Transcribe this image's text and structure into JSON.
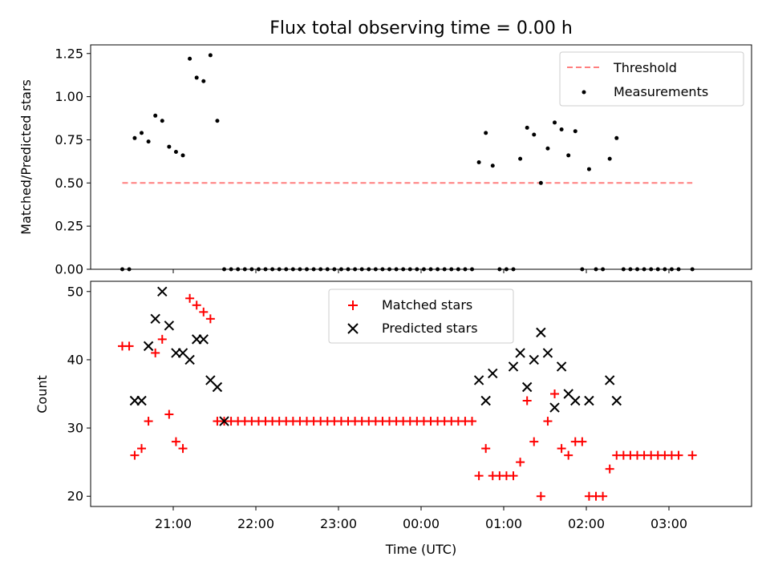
{
  "title": "Flux total observing time = 0.00 h",
  "colors": {
    "threshold": "#ff7f7f",
    "measurements": "#000000",
    "matched": "#ff0000",
    "predicted": "#000000"
  },
  "chart_data": [
    {
      "type": "scatter",
      "ylabel": "Matched/Predicted stars",
      "xlabel": "",
      "ylim": [
        0,
        1.3
      ],
      "yticks": [
        0.0,
        0.25,
        0.5,
        0.75,
        1.0,
        1.25
      ],
      "ytick_labels": [
        "0.00",
        "0.25",
        "0.50",
        "0.75",
        "1.00",
        "1.25"
      ],
      "xticks": [
        "21:00",
        "22:00",
        "23:00",
        "00:00",
        "01:00",
        "02:00",
        "03:00"
      ],
      "xtick_labels_shown": false,
      "legend_position": "top-right",
      "threshold": {
        "name": "Threshold",
        "value": 0.5,
        "x_start": "20:23",
        "x_end": "03:17"
      },
      "series": [
        {
          "name": "Measurements",
          "x": [
            "20:23",
            "20:28",
            "20:32",
            "20:37",
            "20:42",
            "20:47",
            "20:52",
            "20:57",
            "21:02",
            "21:07",
            "21:12",
            "21:17",
            "21:22",
            "21:27",
            "21:32",
            "21:37",
            "21:42",
            "21:47",
            "21:52",
            "21:57",
            "22:02",
            "22:07",
            "22:12",
            "22:17",
            "22:22",
            "22:27",
            "22:32",
            "22:37",
            "22:42",
            "22:47",
            "22:52",
            "22:57",
            "23:02",
            "23:07",
            "23:12",
            "23:17",
            "23:22",
            "23:27",
            "23:32",
            "23:37",
            "23:42",
            "23:47",
            "23:52",
            "23:57",
            "00:02",
            "00:07",
            "00:12",
            "00:17",
            "00:22",
            "00:27",
            "00:32",
            "00:37",
            "00:42",
            "00:47",
            "00:52",
            "00:57",
            "01:02",
            "01:07",
            "01:12",
            "01:17",
            "01:22",
            "01:27",
            "01:32",
            "01:37",
            "01:42",
            "01:47",
            "01:52",
            "01:57",
            "02:02",
            "02:07",
            "02:12",
            "02:17",
            "02:22",
            "02:27",
            "02:32",
            "02:37",
            "02:42",
            "02:47",
            "02:52",
            "02:57",
            "03:02",
            "03:07",
            "03:17"
          ],
          "y": [
            0.0,
            0.0,
            0.76,
            0.79,
            0.74,
            0.89,
            0.86,
            0.71,
            0.68,
            0.66,
            1.22,
            1.11,
            1.09,
            1.24,
            0.86,
            0.0,
            0.0,
            0.0,
            0.0,
            0.0,
            0.0,
            0.0,
            0.0,
            0.0,
            0.0,
            0.0,
            0.0,
            0.0,
            0.0,
            0.0,
            0.0,
            0.0,
            0.0,
            0.0,
            0.0,
            0.0,
            0.0,
            0.0,
            0.0,
            0.0,
            0.0,
            0.0,
            0.0,
            0.0,
            0.0,
            0.0,
            0.0,
            0.0,
            0.0,
            0.0,
            0.0,
            0.0,
            0.62,
            0.79,
            0.6,
            0.0,
            0.0,
            0.0,
            0.64,
            0.82,
            0.78,
            0.5,
            0.7,
            0.85,
            0.81,
            0.66,
            0.8,
            0.0,
            0.58,
            0.0,
            0.0,
            0.64,
            0.76,
            0.0,
            0.0,
            0.0,
            0.0,
            0.0,
            0.0,
            0.0,
            0.0,
            0.0,
            0.0
          ]
        }
      ]
    },
    {
      "type": "scatter",
      "ylabel": "Count",
      "xlabel": "Time (UTC)",
      "ylim": [
        18.5,
        51.5
      ],
      "yticks": [
        20,
        30,
        40,
        50
      ],
      "ytick_labels": [
        "20",
        "30",
        "40",
        "50"
      ],
      "xticks": [
        "21:00",
        "22:00",
        "23:00",
        "00:00",
        "01:00",
        "02:00",
        "03:00"
      ],
      "xtick_labels": [
        "21:00",
        "22:00",
        "23:00",
        "00:00",
        "01:00",
        "02:00",
        "03:00"
      ],
      "legend_position": "top-center",
      "series": [
        {
          "name": "Matched stars",
          "marker": "+",
          "x": [
            "20:23",
            "20:28",
            "20:32",
            "20:37",
            "20:42",
            "20:47",
            "20:52",
            "20:57",
            "21:02",
            "21:07",
            "21:12",
            "21:17",
            "21:22",
            "21:27",
            "21:32",
            "21:37",
            "21:42",
            "21:47",
            "21:52",
            "21:57",
            "22:02",
            "22:07",
            "22:12",
            "22:17",
            "22:22",
            "22:27",
            "22:32",
            "22:37",
            "22:42",
            "22:47",
            "22:52",
            "22:57",
            "23:02",
            "23:07",
            "23:12",
            "23:17",
            "23:22",
            "23:27",
            "23:32",
            "23:37",
            "23:42",
            "23:47",
            "23:52",
            "23:57",
            "00:02",
            "00:07",
            "00:12",
            "00:17",
            "00:22",
            "00:27",
            "00:32",
            "00:37",
            "00:42",
            "00:47",
            "00:52",
            "00:57",
            "01:02",
            "01:07",
            "01:12",
            "01:17",
            "01:22",
            "01:27",
            "01:32",
            "01:37",
            "01:42",
            "01:47",
            "01:52",
            "01:57",
            "02:02",
            "02:07",
            "02:12",
            "02:17",
            "02:22",
            "02:27",
            "02:32",
            "02:37",
            "02:42",
            "02:47",
            "02:52",
            "02:57",
            "03:02",
            "03:07",
            "03:17"
          ],
          "y": [
            42,
            42,
            26,
            27,
            31,
            41,
            43,
            32,
            28,
            27,
            49,
            48,
            47,
            46,
            31,
            31,
            31,
            31,
            31,
            31,
            31,
            31,
            31,
            31,
            31,
            31,
            31,
            31,
            31,
            31,
            31,
            31,
            31,
            31,
            31,
            31,
            31,
            31,
            31,
            31,
            31,
            31,
            31,
            31,
            31,
            31,
            31,
            31,
            31,
            31,
            31,
            31,
            23,
            27,
            23,
            23,
            23,
            23,
            25,
            34,
            28,
            20,
            31,
            35,
            27,
            26,
            28,
            28,
            20,
            20,
            20,
            24,
            26,
            26,
            26,
            26,
            26,
            26,
            26,
            26,
            26,
            26,
            26
          ]
        },
        {
          "name": "Predicted stars",
          "marker": "x",
          "x": [
            "20:32",
            "20:37",
            "20:42",
            "20:47",
            "20:52",
            "20:57",
            "21:02",
            "21:07",
            "21:12",
            "21:17",
            "21:22",
            "21:27",
            "21:32",
            "21:37",
            "00:42",
            "00:47",
            "00:52",
            "01:07",
            "01:12",
            "01:17",
            "01:22",
            "01:27",
            "01:32",
            "01:37",
            "01:42",
            "01:47",
            "01:52",
            "02:02",
            "02:17",
            "02:22"
          ],
          "y": [
            34,
            34,
            42,
            46,
            50,
            45,
            41,
            41,
            40,
            43,
            43,
            37,
            36,
            31,
            37,
            34,
            38,
            39,
            41,
            36,
            40,
            44,
            41,
            33,
            39,
            35,
            34,
            34,
            37,
            34
          ]
        }
      ]
    }
  ]
}
